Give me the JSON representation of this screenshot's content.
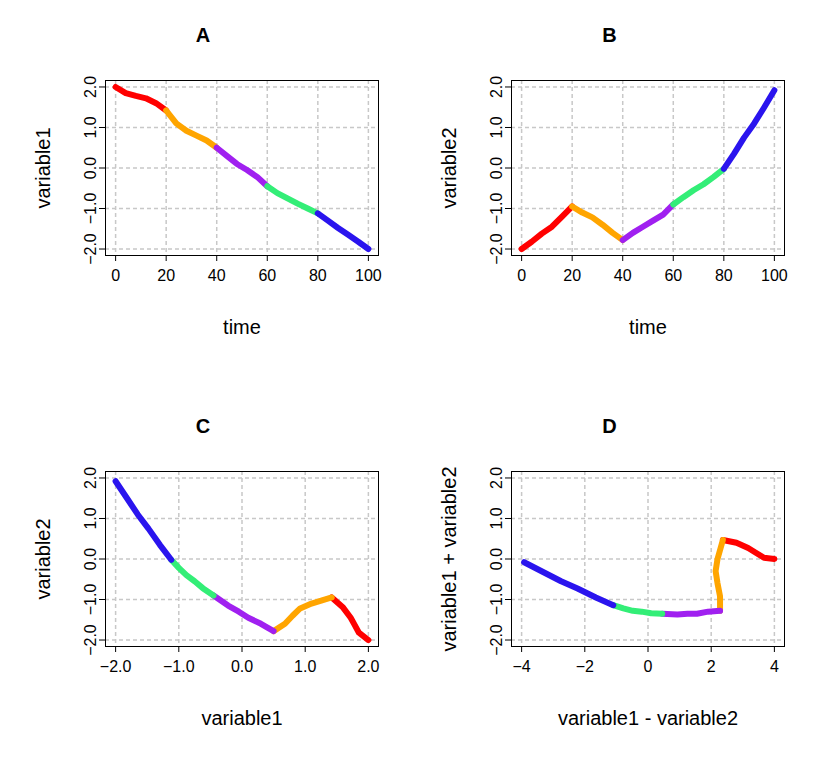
{
  "chart_data": [
    {
      "type": "line",
      "title": "A",
      "x_label": "time",
      "y_label": "variable1",
      "xlim": [
        -4,
        104
      ],
      "ylim": [
        -2.16,
        2.16
      ],
      "xticks": [
        0,
        20,
        40,
        60,
        80,
        100
      ],
      "yticks": [
        -2,
        -1,
        0,
        1,
        2
      ],
      "grid": true,
      "series": [
        {
          "color": "#ff0000",
          "x": [
            0,
            4,
            8,
            12,
            16,
            20
          ],
          "values": [
            2.0,
            1.85,
            1.78,
            1.72,
            1.6,
            1.42
          ]
        },
        {
          "color": "#ffa500",
          "x": [
            20,
            24,
            28,
            32,
            36,
            40
          ],
          "values": [
            1.42,
            1.1,
            0.92,
            0.8,
            0.68,
            0.5
          ]
        },
        {
          "color": "#a020f0",
          "x": [
            40,
            44,
            48,
            52,
            56,
            60
          ],
          "values": [
            0.5,
            0.3,
            0.1,
            -0.05,
            -0.22,
            -0.45
          ]
        },
        {
          "color": "#33ee77",
          "x": [
            60,
            64,
            68,
            72,
            76,
            80
          ],
          "values": [
            -0.45,
            -0.62,
            -0.75,
            -0.88,
            -1.0,
            -1.12
          ]
        },
        {
          "color": "#2a14ee",
          "x": [
            80,
            84,
            88,
            92,
            96,
            100
          ],
          "values": [
            -1.12,
            -1.3,
            -1.48,
            -1.65,
            -1.82,
            -2.0
          ]
        }
      ]
    },
    {
      "type": "line",
      "title": "B",
      "x_label": "time",
      "y_label": "variable2",
      "xlim": [
        -4,
        104
      ],
      "ylim": [
        -2.16,
        2.16
      ],
      "xticks": [
        0,
        20,
        40,
        60,
        80,
        100
      ],
      "yticks": [
        -2,
        -1,
        0,
        1,
        2
      ],
      "grid": true,
      "series": [
        {
          "color": "#ff0000",
          "x": [
            0,
            4,
            8,
            12,
            16,
            20
          ],
          "values": [
            -2.0,
            -1.82,
            -1.62,
            -1.45,
            -1.2,
            -0.95
          ]
        },
        {
          "color": "#ffa500",
          "x": [
            20,
            24,
            28,
            32,
            36,
            40
          ],
          "values": [
            -0.95,
            -1.1,
            -1.22,
            -1.4,
            -1.6,
            -1.78
          ]
        },
        {
          "color": "#a020f0",
          "x": [
            40,
            44,
            48,
            52,
            56,
            60
          ],
          "values": [
            -1.78,
            -1.6,
            -1.45,
            -1.3,
            -1.15,
            -0.9
          ]
        },
        {
          "color": "#33ee77",
          "x": [
            60,
            64,
            68,
            72,
            76,
            80
          ],
          "values": [
            -0.9,
            -0.72,
            -0.55,
            -0.4,
            -0.22,
            -0.02
          ]
        },
        {
          "color": "#2a14ee",
          "x": [
            80,
            84,
            88,
            92,
            96,
            100
          ],
          "values": [
            -0.02,
            0.35,
            0.75,
            1.1,
            1.5,
            1.92
          ]
        }
      ]
    },
    {
      "type": "line",
      "title": "C",
      "x_label": "variable1",
      "y_label": "variable2",
      "xlim": [
        -2.16,
        2.16
      ],
      "ylim": [
        -2.16,
        2.16
      ],
      "xticks": [
        -2,
        -1,
        0,
        1,
        2
      ],
      "yticks": [
        -2,
        -1,
        0,
        1,
        2
      ],
      "grid": true,
      "series": [
        {
          "color": "#ff0000",
          "x": [
            2.0,
            1.85,
            1.78,
            1.72,
            1.6,
            1.42
          ],
          "values": [
            -2.0,
            -1.82,
            -1.62,
            -1.45,
            -1.2,
            -0.95
          ]
        },
        {
          "color": "#ffa500",
          "x": [
            1.42,
            1.1,
            0.92,
            0.8,
            0.68,
            0.5
          ],
          "values": [
            -0.95,
            -1.1,
            -1.22,
            -1.4,
            -1.6,
            -1.78
          ]
        },
        {
          "color": "#a020f0",
          "x": [
            0.5,
            0.3,
            0.1,
            -0.05,
            -0.22,
            -0.45
          ],
          "values": [
            -1.78,
            -1.6,
            -1.45,
            -1.3,
            -1.15,
            -0.9
          ]
        },
        {
          "color": "#33ee77",
          "x": [
            -0.45,
            -0.62,
            -0.75,
            -0.88,
            -1.0,
            -1.12
          ],
          "values": [
            -0.9,
            -0.72,
            -0.55,
            -0.4,
            -0.22,
            -0.02
          ]
        },
        {
          "color": "#2a14ee",
          "x": [
            -1.12,
            -1.3,
            -1.48,
            -1.65,
            -1.82,
            -2.0
          ],
          "values": [
            -0.02,
            0.35,
            0.75,
            1.1,
            1.5,
            1.92
          ]
        }
      ]
    },
    {
      "type": "line",
      "title": "D",
      "x_label": "variable1 - variable2",
      "y_label": "variable1 + variable2",
      "xlim": [
        -4.32,
        4.32
      ],
      "ylim": [
        -2.16,
        2.16
      ],
      "xticks": [
        -4,
        -2,
        0,
        2,
        4
      ],
      "yticks": [
        -2,
        -1,
        0,
        1,
        2
      ],
      "grid": true,
      "series": [
        {
          "color": "#ff0000",
          "x": [
            4.0,
            3.67,
            3.4,
            3.17,
            2.8,
            2.37
          ],
          "values": [
            0.0,
            0.03,
            0.16,
            0.27,
            0.4,
            0.47
          ]
        },
        {
          "color": "#ffa500",
          "x": [
            2.37,
            2.2,
            2.14,
            2.2,
            2.28,
            2.28
          ],
          "values": [
            0.47,
            0.0,
            -0.3,
            -0.6,
            -0.92,
            -1.28
          ]
        },
        {
          "color": "#a020f0",
          "x": [
            2.28,
            1.9,
            1.55,
            1.25,
            0.93,
            0.45
          ],
          "values": [
            -1.28,
            -1.3,
            -1.35,
            -1.35,
            -1.37,
            -1.35
          ]
        },
        {
          "color": "#33ee77",
          "x": [
            0.45,
            0.1,
            -0.2,
            -0.48,
            -0.78,
            -1.1
          ],
          "values": [
            -1.35,
            -1.34,
            -1.3,
            -1.28,
            -1.22,
            -1.14
          ]
        },
        {
          "color": "#2a14ee",
          "x": [
            -1.1,
            -1.65,
            -2.23,
            -2.75,
            -3.32,
            -3.92
          ],
          "values": [
            -1.14,
            -0.95,
            -0.73,
            -0.55,
            -0.32,
            -0.08
          ]
        }
      ]
    }
  ]
}
